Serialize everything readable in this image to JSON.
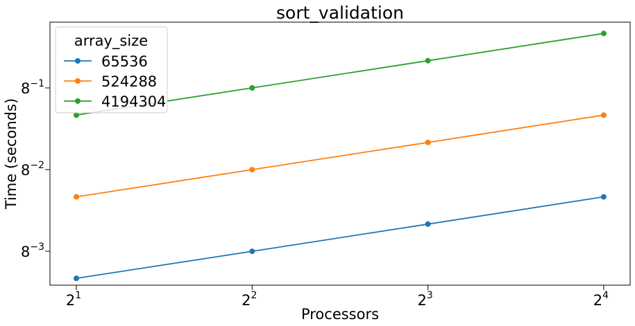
{
  "chart_data": {
    "type": "line",
    "title": "sort_validation",
    "xlabel": "Processors",
    "ylabel": "Time (seconds)",
    "x_scale": "log2",
    "y_scale": "log8",
    "x": [
      2,
      4,
      8,
      16
    ],
    "x_ticks": [
      {
        "base": "2",
        "exp": "1"
      },
      {
        "base": "2",
        "exp": "2"
      },
      {
        "base": "2",
        "exp": "3"
      },
      {
        "base": "2",
        "exp": "4"
      }
    ],
    "y_ticks": [
      {
        "base": "8",
        "exp": "−3",
        "value": 0.001953
      },
      {
        "base": "8",
        "exp": "−2",
        "value": 0.015625
      },
      {
        "base": "8",
        "exp": "−1",
        "value": 0.125
      }
    ],
    "legend": {
      "title": "array_size",
      "position": "top-left"
    },
    "grid": false,
    "series": [
      {
        "name": "65536",
        "color": "#1f77b4",
        "values": [
          0.00098,
          0.00195,
          0.0039,
          0.0078
        ]
      },
      {
        "name": "524288",
        "color": "#ff7f0e",
        "values": [
          0.0078,
          0.0156,
          0.0312,
          0.0625
        ]
      },
      {
        "name": "4194304",
        "color": "#2ca02c",
        "values": [
          0.0625,
          0.125,
          0.25,
          0.5
        ]
      }
    ]
  }
}
